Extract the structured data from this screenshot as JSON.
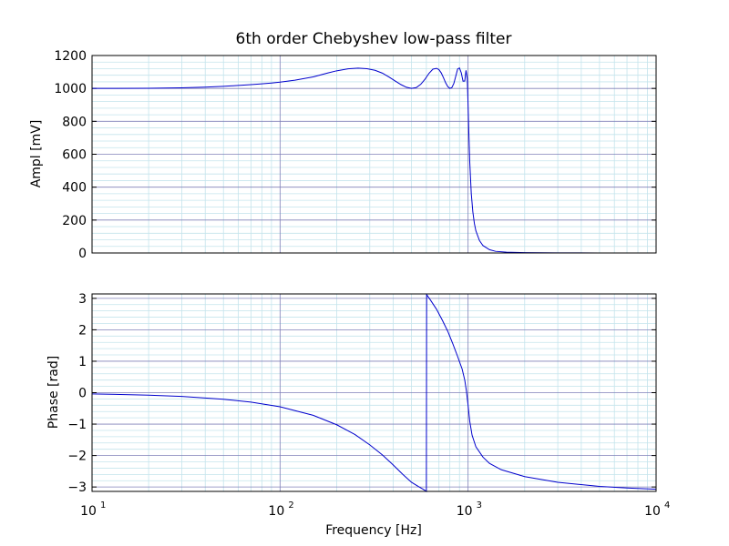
{
  "colors": {
    "line": "#0000cc",
    "major_grid": "#8080b8",
    "minor_grid": "#c4e4ec",
    "axes": "#000000",
    "background": "#ffffff"
  },
  "chart_data": [
    {
      "type": "line",
      "title": "6th order Chebyshev low-pass filter",
      "xlabel": "",
      "ylabel": "Ampl [mV]",
      "xscale": "log",
      "xlim": [
        10,
        10000
      ],
      "ylim": [
        0,
        1200
      ],
      "yticks": [
        0,
        200,
        400,
        600,
        800,
        1000,
        1200
      ],
      "grid": true,
      "x_tick_labels_shown": false,
      "series": [
        {
          "x": [
            10,
            20,
            30,
            40,
            50,
            60,
            70,
            80,
            90,
            100,
            120,
            150,
            180,
            200,
            230,
            260,
            290,
            320,
            350,
            380,
            410,
            440,
            470,
            500,
            530,
            560,
            590,
            620,
            650,
            680,
            700,
            720,
            740,
            760,
            780,
            800,
            820,
            840,
            860,
            880,
            900,
            920,
            940,
            960,
            975,
            990,
            1000,
            1010,
            1020,
            1040,
            1060,
            1080,
            1100,
            1150,
            1200,
            1300,
            1400,
            1600,
            2000,
            3000,
            5000,
            10000
          ],
          "y": [
            1000,
            1001,
            1004,
            1008,
            1013,
            1018,
            1023,
            1028,
            1033,
            1038,
            1050,
            1070,
            1094,
            1107,
            1119,
            1123,
            1120,
            1110,
            1093,
            1069,
            1045,
            1023,
            1007,
            1000,
            1005,
            1025,
            1056,
            1092,
            1117,
            1122,
            1114,
            1094,
            1065,
            1034,
            1011,
            1000,
            1005,
            1030,
            1074,
            1118,
            1124,
            1095,
            1044,
            1045,
            1110,
            1060,
            900,
            720,
            560,
            360,
            250,
            180,
            135,
            75,
            45,
            20,
            10,
            5,
            2,
            1,
            0,
            0
          ]
        }
      ]
    },
    {
      "type": "line",
      "title": "",
      "xlabel": "Frequency [Hz]",
      "ylabel": "Phase [rad]",
      "xscale": "log",
      "xlim": [
        10,
        10000
      ],
      "ylim": [
        -3.14,
        3.14
      ],
      "yticks": [
        -3,
        -2,
        -1,
        0,
        1,
        2,
        3
      ],
      "xtick_exponents": [
        "1",
        "2",
        "3",
        "4"
      ],
      "xtick_base": "10",
      "grid": true,
      "series": [
        {
          "x": [
            10,
            15,
            20,
            30,
            40,
            50,
            70,
            100,
            150,
            200,
            250,
            300,
            350,
            400,
            450,
            500,
            550,
            580,
            600,
            602,
            630,
            680,
            730,
            780,
            830,
            880,
            930,
            960,
            980,
            1000,
            1020,
            1050,
            1100,
            1200,
            1300,
            1500,
            2000,
            3000,
            5000,
            7000,
            10000
          ],
          "y": [
            -0.04,
            -0.06,
            -0.08,
            -0.12,
            -0.17,
            -0.21,
            -0.3,
            -0.45,
            -0.72,
            -1.02,
            -1.33,
            -1.66,
            -1.98,
            -2.3,
            -2.6,
            -2.85,
            -3.0,
            -3.08,
            -3.14,
            3.12,
            2.95,
            2.65,
            2.3,
            1.95,
            1.55,
            1.15,
            0.75,
            0.4,
            0.05,
            -0.4,
            -0.9,
            -1.35,
            -1.72,
            -2.05,
            -2.25,
            -2.45,
            -2.67,
            -2.85,
            -2.98,
            -3.03,
            -3.07
          ]
        }
      ]
    }
  ]
}
